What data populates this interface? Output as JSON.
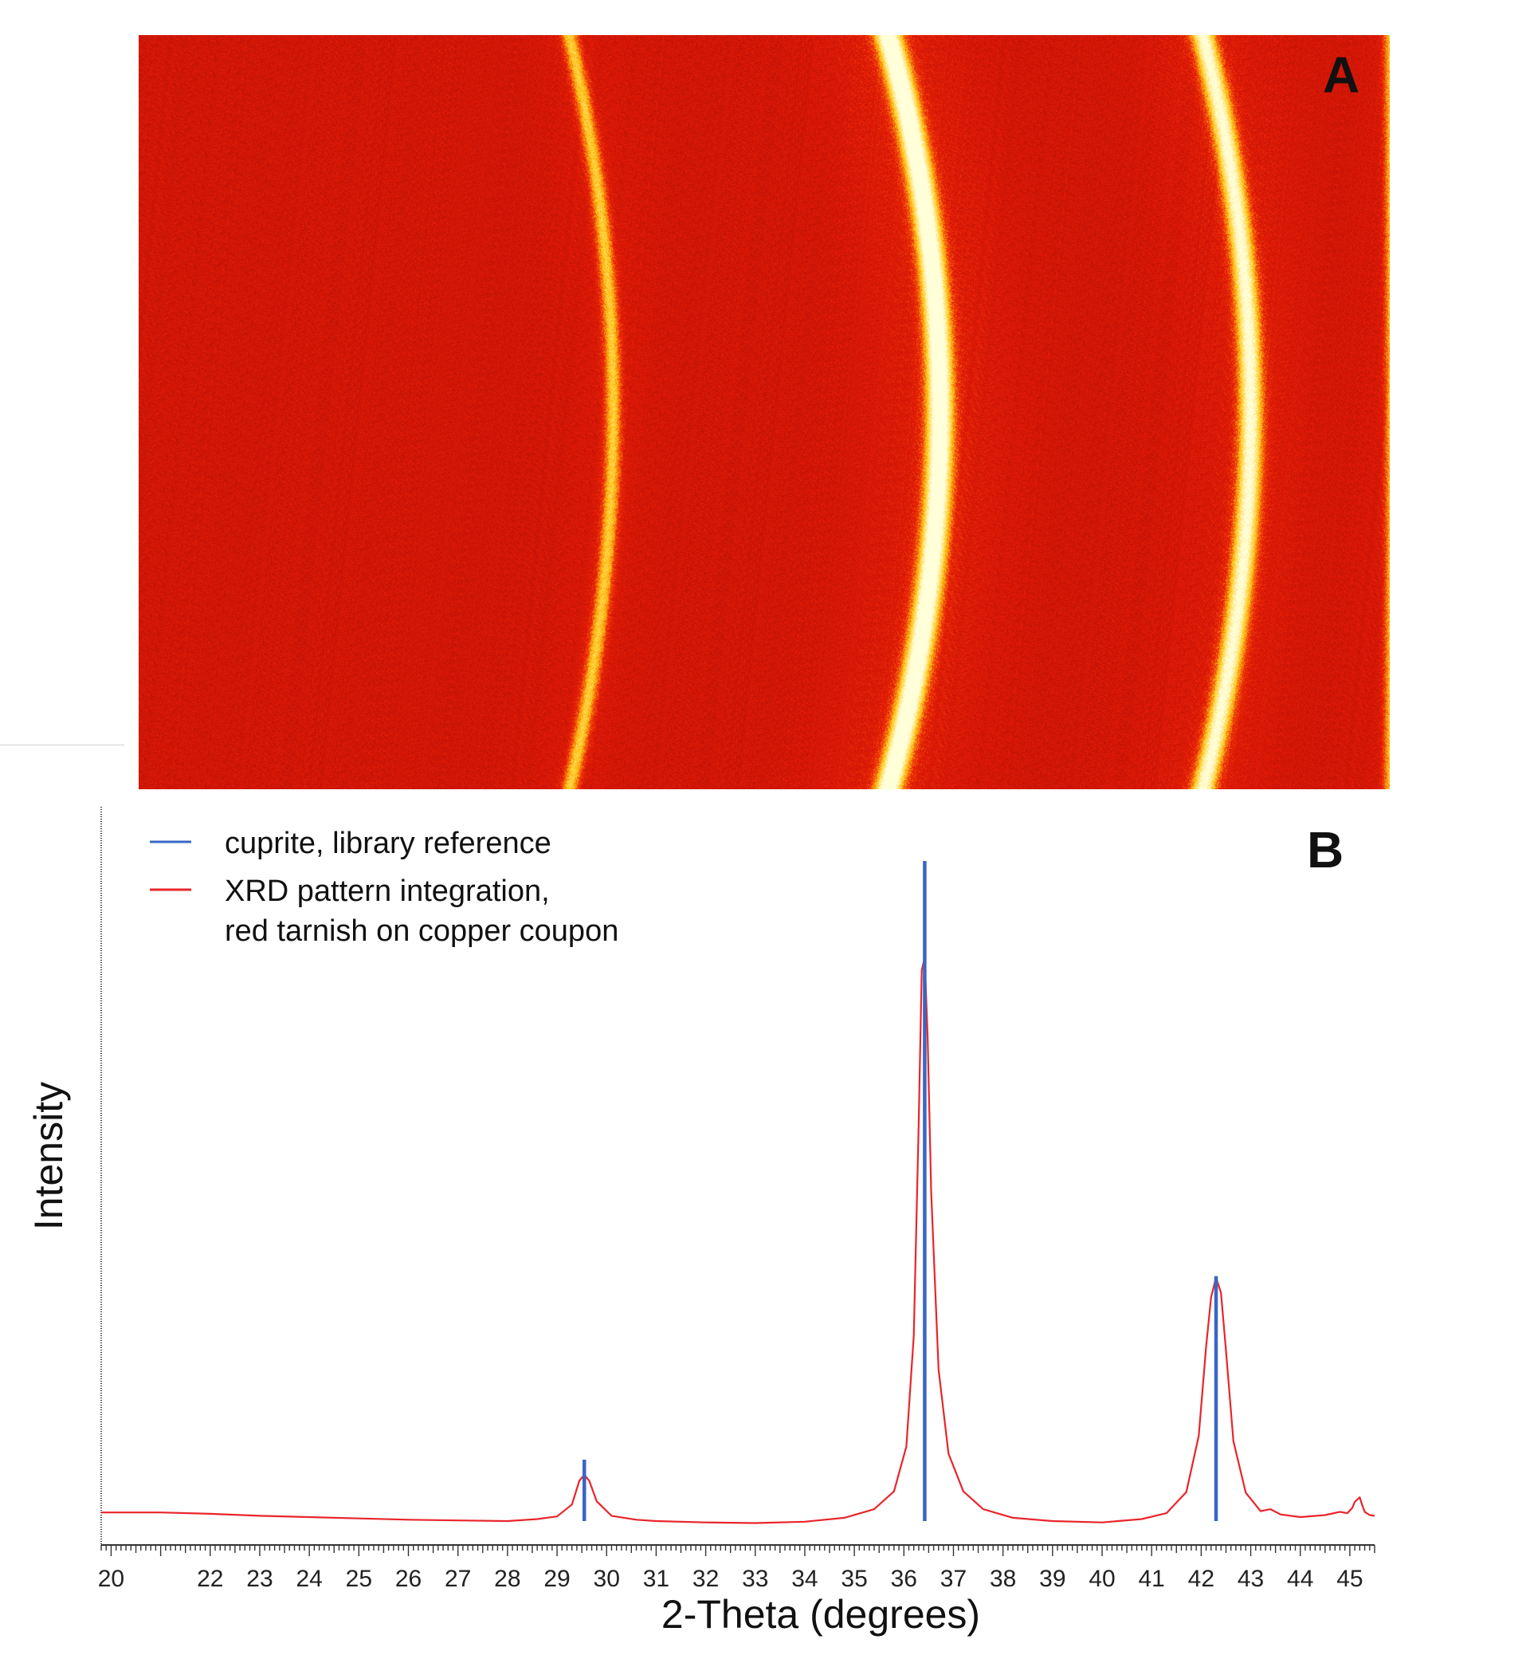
{
  "panel_a": {
    "label": "A",
    "colors": {
      "background": "#c81a08",
      "ring_core": "#fffbe0",
      "ring_glow": "#ffd21a"
    },
    "rings_two_theta": [
      29.55,
      36.42,
      42.3,
      45.0
    ]
  },
  "chart_data": {
    "type": "line",
    "panel_label": "B",
    "xlabel": "2-Theta (degrees)",
    "ylabel": "Intensity",
    "xlim": [
      19.8,
      45.5
    ],
    "ylim": [
      0,
      100
    ],
    "x_ticks": [
      20,
      22,
      23,
      24,
      25,
      26,
      27,
      28,
      29,
      30,
      31,
      32,
      33,
      34,
      35,
      36,
      37,
      38,
      39,
      40,
      41,
      42,
      43,
      44,
      45
    ],
    "legend_position": "top-left",
    "grid": false,
    "series": [
      {
        "name": "cuprite, library reference",
        "kind": "stick",
        "color": "#3a66c4",
        "x": [
          29.55,
          36.42,
          42.3
        ],
        "y": [
          9.3,
          100,
          37.1
        ]
      },
      {
        "name": "XRD pattern integration,\nred tarnish on copper coupon",
        "kind": "line",
        "color": "#e8252b",
        "x": [
          19.8,
          20,
          21,
          22,
          23,
          24,
          25,
          26,
          27,
          28,
          28.6,
          29.0,
          29.3,
          29.45,
          29.55,
          29.65,
          29.8,
          30.1,
          30.6,
          31,
          32,
          33,
          34,
          34.8,
          35.4,
          35.8,
          36.05,
          36.2,
          36.3,
          36.36,
          36.42,
          36.48,
          36.55,
          36.7,
          36.9,
          37.2,
          37.6,
          38.2,
          39,
          40,
          40.8,
          41.3,
          41.7,
          41.95,
          42.1,
          42.2,
          42.3,
          42.4,
          42.5,
          42.65,
          42.9,
          43.2,
          43.4,
          43.6,
          44,
          44.5,
          44.8,
          44.95,
          45.05,
          45.1,
          45.2,
          45.25,
          45.3,
          45.4,
          45.5
        ],
        "y": [
          1.3,
          1.3,
          1.3,
          1.1,
          0.8,
          0.6,
          0.4,
          0.2,
          0.1,
          0,
          0.3,
          0.7,
          2.5,
          6.1,
          7.0,
          6.1,
          3.0,
          0.8,
          0.2,
          0,
          -0.2,
          -0.3,
          -0.1,
          0.5,
          1.8,
          4.5,
          11.3,
          28.1,
          60.9,
          83.4,
          85.4,
          73.3,
          50.0,
          23.0,
          10.2,
          4.5,
          1.8,
          0.5,
          0,
          -0.2,
          0.3,
          1.2,
          4.4,
          12.9,
          26.5,
          33.9,
          36.9,
          34.6,
          25.8,
          12.1,
          4.3,
          1.5,
          1.8,
          1.0,
          0.6,
          0.9,
          1.4,
          1.2,
          2.0,
          2.9,
          3.6,
          2.4,
          1.4,
          0.9,
          0.8
        ]
      }
    ]
  }
}
